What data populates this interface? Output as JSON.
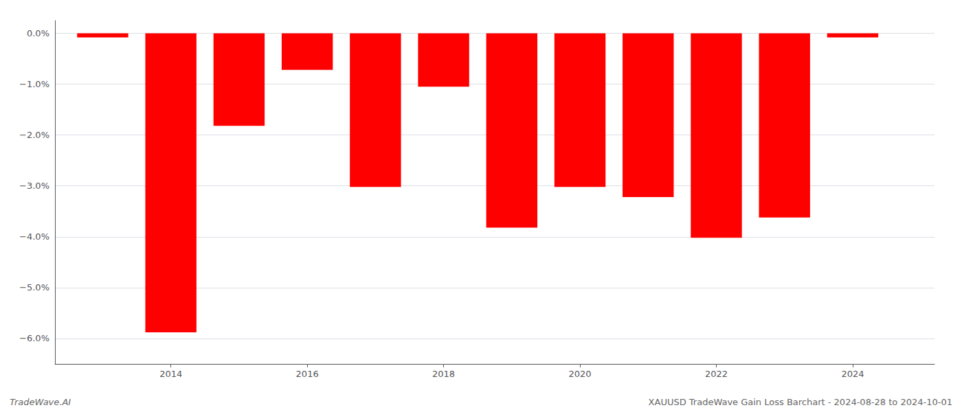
{
  "chart_data": {
    "type": "bar",
    "x": [
      2013,
      2014,
      2015,
      2016,
      2017,
      2018,
      2019,
      2020,
      2021,
      2022,
      2023,
      2024
    ],
    "values": [
      -0.08,
      -5.88,
      -1.82,
      -0.72,
      -3.02,
      -1.05,
      -3.82,
      -3.02,
      -3.22,
      -4.02,
      -3.62,
      -0.08
    ],
    "color": "#ff0000",
    "xlim": [
      2012.3,
      2025.2
    ],
    "xticks": [
      2014,
      2016,
      2018,
      2020,
      2022,
      2024
    ],
    "ylim": [
      -6.5,
      0.25
    ],
    "yticks": [
      {
        "value": 0.0,
        "label": "0.0%"
      },
      {
        "value": -1.0,
        "label": "−1.0%"
      },
      {
        "value": -2.0,
        "label": "−2.0%"
      },
      {
        "value": -3.0,
        "label": "−3.0%"
      },
      {
        "value": -4.0,
        "label": "−4.0%"
      },
      {
        "value": -5.0,
        "label": "−5.0%"
      },
      {
        "value": -6.0,
        "label": "−6.0%"
      }
    ],
    "grid": true,
    "annotations": [
      "TradeWave.AI",
      "XAUUSD TradeWave Gain Loss Barchart - 2024-08-28 to 2024-10-01"
    ]
  }
}
